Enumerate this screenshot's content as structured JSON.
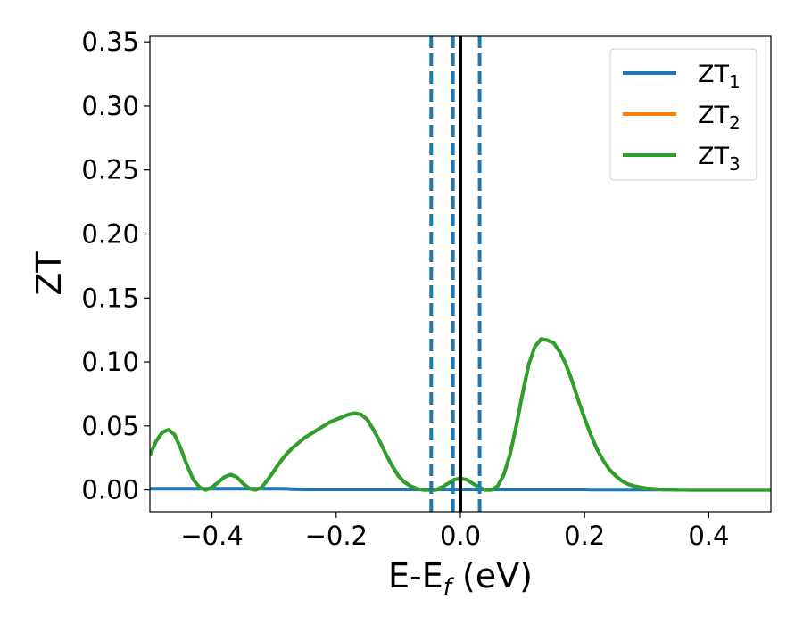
{
  "chart_data": {
    "type": "line",
    "title": "",
    "xlabel": "E-E",
    "xlabel_sub": "f",
    "xlabel_unit": " (eV)",
    "ylabel": "ZT",
    "xlim": [
      -0.5,
      0.5
    ],
    "ylim": [
      -0.017,
      0.355
    ],
    "xticks": [
      -0.4,
      -0.2,
      0.0,
      0.2,
      0.4
    ],
    "xtick_labels": [
      "−0.4",
      "−0.2",
      "0.0",
      "0.2",
      "0.4"
    ],
    "yticks": [
      0.0,
      0.05,
      0.1,
      0.15,
      0.2,
      0.25,
      0.3,
      0.35
    ],
    "ytick_labels": [
      "0.00",
      "0.05",
      "0.10",
      "0.15",
      "0.20",
      "0.25",
      "0.30",
      "0.35"
    ],
    "grid": false,
    "legend_position": "top-right",
    "x": [
      -0.5,
      -0.49,
      -0.48,
      -0.47,
      -0.46,
      -0.45,
      -0.44,
      -0.43,
      -0.42,
      -0.41,
      -0.4,
      -0.39,
      -0.38,
      -0.37,
      -0.36,
      -0.35,
      -0.34,
      -0.33,
      -0.32,
      -0.31,
      -0.3,
      -0.29,
      -0.28,
      -0.27,
      -0.26,
      -0.25,
      -0.24,
      -0.23,
      -0.22,
      -0.21,
      -0.2,
      -0.19,
      -0.18,
      -0.17,
      -0.16,
      -0.15,
      -0.14,
      -0.13,
      -0.12,
      -0.11,
      -0.1,
      -0.09,
      -0.08,
      -0.07,
      -0.06,
      -0.05,
      -0.04,
      -0.03,
      -0.02,
      -0.01,
      0.0,
      0.01,
      0.02,
      0.03,
      0.04,
      0.05,
      0.06,
      0.07,
      0.08,
      0.09,
      0.1,
      0.11,
      0.12,
      0.13,
      0.14,
      0.15,
      0.16,
      0.17,
      0.18,
      0.19,
      0.2,
      0.21,
      0.22,
      0.23,
      0.24,
      0.25,
      0.26,
      0.27,
      0.28,
      0.29,
      0.3,
      0.31,
      0.32,
      0.33,
      0.34,
      0.35,
      0.36,
      0.37,
      0.38,
      0.39,
      0.4,
      0.42,
      0.44,
      0.46,
      0.48,
      0.5
    ],
    "series": [
      {
        "name": "ZT",
        "name_sub": "1",
        "color": "#1f77b4",
        "values": [
          0.001,
          0.001,
          0.001,
          0.001,
          0.001,
          0.001,
          0.001,
          0.001,
          0.001,
          0.001,
          0.001,
          0.001,
          0.001,
          0.001,
          0.001,
          0.001,
          0.001,
          0.001,
          0.001,
          0.001,
          0.001,
          0.001,
          0.0008,
          0.0006,
          0.0005,
          0.0004,
          0.0004,
          0.0004,
          0.0004,
          0.0004,
          0.0004,
          0.0004,
          0.0004,
          0.0004,
          0.0004,
          0.0004,
          0.0004,
          0.0004,
          0.0004,
          0.0004,
          0.0004,
          0.0004,
          0.0004,
          0.0004,
          0.0004,
          0.0004,
          0.0004,
          0.0004,
          0.0004,
          0.0004,
          0.0004,
          0.0004,
          0.0004,
          0.0004,
          0.0004,
          0.0004,
          0.0004,
          0.0004,
          0.0004,
          0.0004,
          0.0004,
          0.0004,
          0.0004,
          0.0004,
          0.0004,
          0.0004,
          0.0004,
          0.0004,
          0.0004,
          0.0004,
          0.0004,
          0.0003,
          0.0003,
          0.0003,
          0.0003,
          0.0003,
          0.0003,
          0.0003,
          0.0003,
          0.0003,
          0.0003,
          0.0003,
          0.0003,
          0.0003,
          0.0003,
          0.0003,
          0.0003,
          0.0003,
          0.0003,
          0.0003,
          0.0003,
          0.0003,
          0.0003,
          0.0003,
          0.0003,
          0.0003
        ]
      },
      {
        "name": "ZT",
        "name_sub": "2",
        "color": "#ff7f0e",
        "values": [
          0.027,
          0.038,
          0.045,
          0.047,
          0.043,
          0.032,
          0.019,
          0.008,
          0.002,
          0.0,
          0.002,
          0.006,
          0.01,
          0.012,
          0.01,
          0.005,
          0.001,
          0.0,
          0.002,
          0.008,
          0.015,
          0.022,
          0.028,
          0.033,
          0.037,
          0.041,
          0.044,
          0.047,
          0.05,
          0.053,
          0.055,
          0.057,
          0.059,
          0.06,
          0.059,
          0.055,
          0.047,
          0.038,
          0.028,
          0.019,
          0.011,
          0.006,
          0.003,
          0.001,
          0.0,
          0.0,
          0.0,
          0.002,
          0.005,
          0.008,
          0.009,
          0.008,
          0.005,
          0.002,
          0.0,
          0.0,
          0.003,
          0.012,
          0.028,
          0.05,
          0.075,
          0.098,
          0.112,
          0.118,
          0.117,
          0.115,
          0.108,
          0.098,
          0.085,
          0.07,
          0.056,
          0.043,
          0.032,
          0.023,
          0.016,
          0.011,
          0.007,
          0.0045,
          0.003,
          0.002,
          0.0012,
          0.0008,
          0.0005,
          0.0003,
          0.0002,
          0.0001,
          0.0001,
          0.0,
          0.0,
          0.0,
          0.0,
          0.0,
          0.0,
          0.0,
          0.0,
          0.0
        ]
      },
      {
        "name": "ZT",
        "name_sub": "3",
        "color": "#2ca02c",
        "values": [
          0.027,
          0.038,
          0.045,
          0.047,
          0.043,
          0.032,
          0.019,
          0.008,
          0.002,
          0.0,
          0.002,
          0.006,
          0.01,
          0.012,
          0.01,
          0.005,
          0.001,
          0.0,
          0.002,
          0.008,
          0.015,
          0.022,
          0.028,
          0.033,
          0.037,
          0.041,
          0.044,
          0.047,
          0.05,
          0.053,
          0.055,
          0.057,
          0.059,
          0.06,
          0.059,
          0.055,
          0.047,
          0.038,
          0.028,
          0.019,
          0.011,
          0.006,
          0.003,
          0.001,
          0.0,
          0.0,
          0.0,
          0.002,
          0.005,
          0.008,
          0.009,
          0.008,
          0.005,
          0.002,
          0.0,
          0.0,
          0.003,
          0.012,
          0.028,
          0.05,
          0.075,
          0.098,
          0.112,
          0.118,
          0.117,
          0.115,
          0.108,
          0.098,
          0.085,
          0.07,
          0.056,
          0.043,
          0.032,
          0.023,
          0.016,
          0.011,
          0.007,
          0.0045,
          0.003,
          0.002,
          0.0012,
          0.0008,
          0.0005,
          0.0003,
          0.0002,
          0.0001,
          0.0001,
          0.0,
          0.0,
          0.0,
          0.0,
          0.0,
          0.0,
          0.0,
          0.0,
          0.0
        ]
      }
    ],
    "vlines": [
      {
        "x": 0.0,
        "color": "#000000",
        "style": "solid"
      },
      {
        "x": -0.047,
        "color": "#1f77b4",
        "style": "dashed"
      },
      {
        "x": -0.012,
        "color": "#1f77b4",
        "style": "dashed"
      },
      {
        "x": 0.031,
        "color": "#1f77b4",
        "style": "dashed"
      }
    ]
  }
}
